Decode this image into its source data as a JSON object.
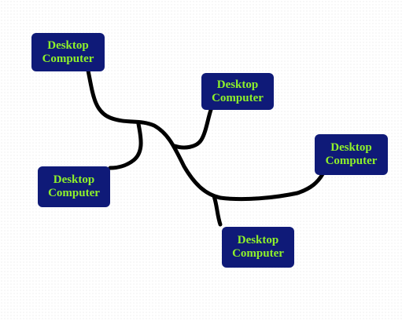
{
  "diagram": {
    "wire_color": "#000000",
    "node_color": "#0f1a78",
    "text_color": "#8ff22a",
    "nodes": [
      {
        "id": "node-1",
        "label": "Desktop\nComputer"
      },
      {
        "id": "node-2",
        "label": "Desktop\nComputer"
      },
      {
        "id": "node-3",
        "label": "Desktop\nComputer"
      },
      {
        "id": "node-4",
        "label": "Desktop\nComputer"
      },
      {
        "id": "node-5",
        "label": "Desktop\nComputer"
      }
    ]
  }
}
